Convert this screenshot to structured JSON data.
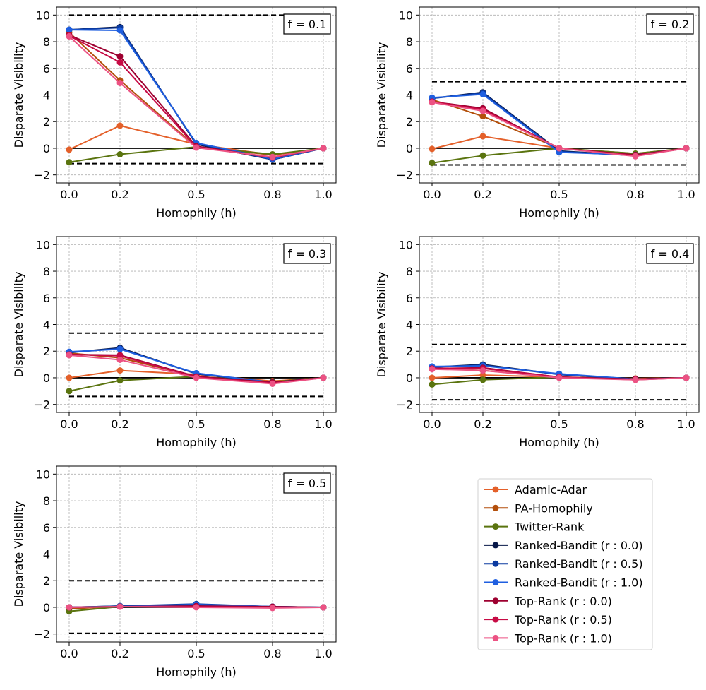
{
  "legend": {
    "entries": [
      {
        "name": "Adamic-Adar",
        "color": "#e4602a"
      },
      {
        "name": "PA-Homophily",
        "color": "#b34f0b"
      },
      {
        "name": "Twitter-Rank",
        "color": "#5a740f"
      },
      {
        "name": "Ranked-Bandit (r : 0.0)",
        "color": "#071848"
      },
      {
        "name": "Ranked-Bandit (r : 0.5)",
        "color": "#0b3aa0"
      },
      {
        "name": "Ranked-Bandit (r : 1.0)",
        "color": "#1f5fe0"
      },
      {
        "name": "Top-Rank (r : 0.0)",
        "color": "#9d0030"
      },
      {
        "name": "Top-Rank (r : 0.5)",
        "color": "#c70b45"
      },
      {
        "name": "Top-Rank (r : 1.0)",
        "color": "#ec5283"
      }
    ]
  },
  "chart_data": [
    {
      "type": "line",
      "annotation": "f = 0.1",
      "xlabel": "Homophily (h)",
      "ylabel": "Disparate Visibility",
      "x": [
        0.0,
        0.2,
        0.5,
        0.8,
        1.0
      ],
      "xtick_labels": [
        "0.0",
        "0.2",
        "0.5",
        "0.8",
        "1.0"
      ],
      "yticks": [
        -2,
        0,
        2,
        4,
        6,
        8,
        10
      ],
      "ylim": [
        -2.6,
        10.6
      ],
      "xlim": [
        -0.05,
        1.05
      ],
      "grid": true,
      "reference_lines": {
        "zero": 0,
        "upper": 10.0,
        "lower": -1.15
      },
      "series": [
        {
          "name": "Adamic-Adar",
          "values": [
            -0.1,
            1.7,
            0.3,
            -0.5,
            0.0
          ]
        },
        {
          "name": "PA-Homophily",
          "values": [
            8.7,
            5.1,
            0.1,
            -0.5,
            0.0
          ]
        },
        {
          "name": "Twitter-Rank",
          "values": [
            -1.05,
            -0.45,
            0.1,
            -0.45,
            0.0
          ]
        },
        {
          "name": "Ranked-Bandit (r : 0.0)",
          "values": [
            8.9,
            9.1,
            0.3,
            -0.85,
            0.0
          ]
        },
        {
          "name": "Ranked-Bandit (r : 0.5)",
          "values": [
            8.9,
            9.05,
            0.35,
            -0.85,
            0.0
          ]
        },
        {
          "name": "Ranked-Bandit (r : 1.0)",
          "values": [
            8.9,
            8.85,
            0.4,
            -0.8,
            0.0
          ]
        },
        {
          "name": "Top-Rank (r : 0.0)",
          "values": [
            8.5,
            6.9,
            0.15,
            -0.7,
            0.0
          ]
        },
        {
          "name": "Top-Rank (r : 0.5)",
          "values": [
            8.45,
            6.45,
            0.1,
            -0.7,
            0.0
          ]
        },
        {
          "name": "Top-Rank (r : 1.0)",
          "values": [
            8.4,
            4.9,
            0.05,
            -0.65,
            0.0
          ]
        }
      ]
    },
    {
      "type": "line",
      "annotation": "f = 0.2",
      "xlabel": "Homophily (h)",
      "ylabel": "Disparate Visibility",
      "x": [
        0.0,
        0.2,
        0.5,
        0.8,
        1.0
      ],
      "xtick_labels": [
        "0.0",
        "0.2",
        "0.5",
        "0.8",
        "1.0"
      ],
      "yticks": [
        -2,
        0,
        2,
        4,
        6,
        8,
        10
      ],
      "ylim": [
        -2.6,
        10.6
      ],
      "xlim": [
        -0.05,
        1.05
      ],
      "grid": true,
      "reference_lines": {
        "zero": 0,
        "upper": 5.0,
        "lower": -1.25
      },
      "series": [
        {
          "name": "Adamic-Adar",
          "values": [
            -0.05,
            0.9,
            0.0,
            -0.45,
            0.0
          ]
        },
        {
          "name": "PA-Homophily",
          "values": [
            3.65,
            2.4,
            0.0,
            -0.4,
            0.0
          ]
        },
        {
          "name": "Twitter-Rank",
          "values": [
            -1.1,
            -0.55,
            0.0,
            -0.4,
            0.0
          ]
        },
        {
          "name": "Ranked-Bandit (r : 0.0)",
          "values": [
            3.75,
            4.2,
            -0.2,
            -0.55,
            0.0
          ]
        },
        {
          "name": "Ranked-Bandit (r : 0.5)",
          "values": [
            3.75,
            4.15,
            -0.25,
            -0.55,
            0.0
          ]
        },
        {
          "name": "Ranked-Bandit (r : 1.0)",
          "values": [
            3.8,
            4.05,
            -0.3,
            -0.5,
            0.0
          ]
        },
        {
          "name": "Top-Rank (r : 0.0)",
          "values": [
            3.5,
            3.0,
            0.0,
            -0.5,
            0.0
          ]
        },
        {
          "name": "Top-Rank (r : 0.5)",
          "values": [
            3.5,
            2.9,
            0.0,
            -0.55,
            0.0
          ]
        },
        {
          "name": "Top-Rank (r : 1.0)",
          "values": [
            3.45,
            2.8,
            0.0,
            -0.6,
            0.0
          ]
        }
      ]
    },
    {
      "type": "line",
      "annotation": "f = 0.3",
      "xlabel": "Homophily (h)",
      "ylabel": "Disparate Visibility",
      "x": [
        0.0,
        0.2,
        0.5,
        0.8,
        1.0
      ],
      "xtick_labels": [
        "0.0",
        "0.2",
        "0.5",
        "0.8",
        "1.0"
      ],
      "yticks": [
        -2,
        0,
        2,
        4,
        6,
        8,
        10
      ],
      "ylim": [
        -2.6,
        10.6
      ],
      "xlim": [
        -0.05,
        1.05
      ],
      "grid": true,
      "reference_lines": {
        "zero": 0,
        "upper": 3.35,
        "lower": -1.4
      },
      "series": [
        {
          "name": "Adamic-Adar",
          "values": [
            0.0,
            0.55,
            0.25,
            -0.25,
            0.0
          ]
        },
        {
          "name": "PA-Homophily",
          "values": [
            1.85,
            1.5,
            0.1,
            -0.3,
            0.0
          ]
        },
        {
          "name": "Twitter-Rank",
          "values": [
            -1.0,
            -0.2,
            0.1,
            -0.3,
            0.0
          ]
        },
        {
          "name": "Ranked-Bandit (r : 0.0)",
          "values": [
            1.9,
            2.25,
            0.3,
            -0.35,
            0.0
          ]
        },
        {
          "name": "Ranked-Bandit (r : 0.5)",
          "values": [
            1.9,
            2.2,
            0.3,
            -0.35,
            0.0
          ]
        },
        {
          "name": "Ranked-Bandit (r : 1.0)",
          "values": [
            1.95,
            2.15,
            0.35,
            -0.35,
            0.0
          ]
        },
        {
          "name": "Top-Rank (r : 0.0)",
          "values": [
            1.75,
            1.7,
            0.1,
            -0.35,
            0.0
          ]
        },
        {
          "name": "Top-Rank (r : 0.5)",
          "values": [
            1.75,
            1.65,
            0.05,
            -0.4,
            0.0
          ]
        },
        {
          "name": "Top-Rank (r : 1.0)",
          "values": [
            1.7,
            1.35,
            0.0,
            -0.45,
            0.0
          ]
        }
      ]
    },
    {
      "type": "line",
      "annotation": "f = 0.4",
      "xlabel": "Homophily (h)",
      "ylabel": "Disparate Visibility",
      "x": [
        0.0,
        0.2,
        0.5,
        0.8,
        1.0
      ],
      "xtick_labels": [
        "0.0",
        "0.2",
        "0.5",
        "0.8",
        "1.0"
      ],
      "yticks": [
        -2,
        0,
        2,
        4,
        6,
        8,
        10
      ],
      "ylim": [
        -2.6,
        10.6
      ],
      "xlim": [
        -0.05,
        1.05
      ],
      "grid": true,
      "reference_lines": {
        "zero": 0,
        "upper": 2.5,
        "lower": -1.65
      },
      "series": [
        {
          "name": "Adamic-Adar",
          "values": [
            0.0,
            0.2,
            0.05,
            -0.05,
            0.0
          ]
        },
        {
          "name": "PA-Homophily",
          "values": [
            0.7,
            0.55,
            0.05,
            -0.1,
            0.0
          ]
        },
        {
          "name": "Twitter-Rank",
          "values": [
            -0.5,
            -0.15,
            0.05,
            -0.1,
            0.0
          ]
        },
        {
          "name": "Ranked-Bandit (r : 0.0)",
          "values": [
            0.8,
            1.0,
            0.25,
            -0.1,
            0.0
          ]
        },
        {
          "name": "Ranked-Bandit (r : 0.5)",
          "values": [
            0.8,
            0.95,
            0.25,
            -0.1,
            0.0
          ]
        },
        {
          "name": "Ranked-Bandit (r : 1.0)",
          "values": [
            0.85,
            0.9,
            0.3,
            -0.1,
            0.0
          ]
        },
        {
          "name": "Top-Rank (r : 0.0)",
          "values": [
            0.7,
            0.75,
            0.05,
            -0.1,
            0.0
          ]
        },
        {
          "name": "Top-Rank (r : 0.5)",
          "values": [
            0.7,
            0.7,
            0.05,
            -0.15,
            0.0
          ]
        },
        {
          "name": "Top-Rank (r : 1.0)",
          "values": [
            0.65,
            0.55,
            0.0,
            -0.15,
            0.0
          ]
        }
      ]
    },
    {
      "type": "line",
      "annotation": "f = 0.5",
      "xlabel": "Homophily (h)",
      "ylabel": "Disparate Visibility",
      "x": [
        0.0,
        0.2,
        0.5,
        0.8,
        1.0
      ],
      "xtick_labels": [
        "0.0",
        "0.2",
        "0.5",
        "0.8",
        "1.0"
      ],
      "yticks": [
        -2,
        0,
        2,
        4,
        6,
        8,
        10
      ],
      "ylim": [
        -2.6,
        10.6
      ],
      "xlim": [
        -0.05,
        1.05
      ],
      "grid": true,
      "reference_lines": {
        "zero": 0,
        "upper": 2.0,
        "lower": -1.95
      },
      "series": [
        {
          "name": "Adamic-Adar",
          "values": [
            0.0,
            0.05,
            0.1,
            0.0,
            0.0
          ]
        },
        {
          "name": "PA-Homophily",
          "values": [
            -0.1,
            0.05,
            0.1,
            0.0,
            0.0
          ]
        },
        {
          "name": "Twitter-Rank",
          "values": [
            -0.3,
            0.05,
            0.1,
            0.0,
            0.0
          ]
        },
        {
          "name": "Ranked-Bandit (r : 0.0)",
          "values": [
            0.0,
            0.1,
            0.2,
            0.05,
            0.0
          ]
        },
        {
          "name": "Ranked-Bandit (r : 0.5)",
          "values": [
            0.0,
            0.1,
            0.25,
            0.05,
            0.0
          ]
        },
        {
          "name": "Ranked-Bandit (r : 1.0)",
          "values": [
            0.0,
            0.05,
            0.2,
            0.05,
            0.0
          ]
        },
        {
          "name": "Top-Rank (r : 0.0)",
          "values": [
            0.0,
            0.05,
            0.1,
            0.05,
            0.0
          ]
        },
        {
          "name": "Top-Rank (r : 0.5)",
          "values": [
            0.0,
            0.05,
            0.05,
            0.0,
            0.0
          ]
        },
        {
          "name": "Top-Rank (r : 1.0)",
          "values": [
            0.0,
            0.05,
            0.0,
            -0.05,
            0.0
          ]
        }
      ]
    }
  ]
}
